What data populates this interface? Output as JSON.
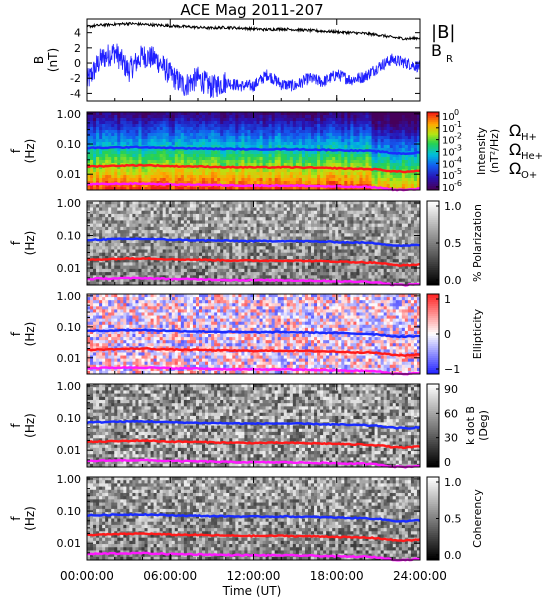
{
  "title": "ACE Mag 2011-207",
  "xaxis": {
    "ticks": [
      "00:00:00",
      "06:00:00",
      "12:00:00",
      "18:00:00",
      "24:00:00"
    ],
    "tick_hours": [
      0,
      6,
      12,
      18,
      24
    ],
    "label": "Time (UT)"
  },
  "colors": {
    "B": "#000000",
    "BR": "#1f1fff",
    "H": "#1a2cff",
    "He": "#ff1a1a",
    "O": "#ff19ff"
  },
  "chart_data": [
    {
      "type": "line",
      "panel": "field",
      "ylabel": "B",
      "yunit": "(nT)",
      "ylim": [
        -5,
        5.8
      ],
      "yticks": [
        "4",
        "2",
        "0",
        "-2",
        "-4"
      ],
      "ytick_values": [
        4,
        2,
        0,
        -2,
        -4
      ],
      "legend": [
        "|B|",
        "B"
      ],
      "legend_sub": [
        "",
        "R"
      ],
      "series": [
        {
          "name": "|B|",
          "x": [
            0,
            1,
            2,
            3,
            4,
            5,
            6,
            7,
            8,
            9,
            10,
            11,
            12,
            13,
            14,
            15,
            16,
            17,
            18,
            19,
            20,
            21,
            22,
            23,
            24
          ],
          "values": [
            4.8,
            5.0,
            5.1,
            5.2,
            5.1,
            5.0,
            4.9,
            4.8,
            4.7,
            4.6,
            4.7,
            4.6,
            4.5,
            4.4,
            4.5,
            4.4,
            4.3,
            4.2,
            4.1,
            4.0,
            3.9,
            3.7,
            3.4,
            3.2,
            3.3
          ]
        },
        {
          "name": "B_R",
          "x": [
            0,
            1,
            2,
            3,
            4,
            5,
            6,
            7,
            8,
            9,
            10,
            11,
            12,
            13,
            14,
            15,
            16,
            17,
            18,
            19,
            20,
            21,
            22,
            23,
            24
          ],
          "values": [
            -2.5,
            0.5,
            1.5,
            -1.0,
            1.0,
            0.5,
            -1.5,
            -3.0,
            -2.0,
            -3.2,
            -2.5,
            -3.0,
            -3.0,
            -1.5,
            -2.8,
            -3.0,
            -2.0,
            -2.5,
            -1.5,
            -2.2,
            -1.8,
            -0.5,
            0.5,
            0.0,
            -0.5
          ]
        }
      ]
    },
    {
      "type": "heatmap",
      "panel": "intensity",
      "ylabel": "f",
      "yunit": "(Hz)",
      "scale": "log",
      "ylim": [
        0.003,
        1.0
      ],
      "yticks": [
        "1.00",
        "0.10",
        "0.01"
      ],
      "ytick_values": [
        1.0,
        0.1,
        0.01
      ],
      "colorbar": {
        "label": "Intensity (nT²/Hz)",
        "ticks": [
          "10^0",
          "10^-1",
          "10^-2",
          "10^-3",
          "10^-4",
          "10^-5",
          "10^-6"
        ],
        "range": [
          -6.5,
          0
        ]
      },
      "legend": [
        "Ω",
        "Ω",
        "Ω"
      ],
      "legend_sub": [
        "H+",
        "He+",
        "O+"
      ]
    },
    {
      "type": "heatmap",
      "panel": "polarization",
      "ylabel": "f",
      "yunit": "(Hz)",
      "yticks": [
        "1.00",
        "0.10",
        "0.01"
      ],
      "ytick_values": [
        1.0,
        0.1,
        0.01
      ],
      "colorbar": {
        "label": "% Polarization",
        "ticks": [
          "1.0",
          "0.5",
          "0.0"
        ],
        "range": [
          0,
          1
        ]
      }
    },
    {
      "type": "heatmap",
      "panel": "ellipticity",
      "ylabel": "f",
      "yunit": "(Hz)",
      "yticks": [
        "1.00",
        "0.10",
        "0.01"
      ],
      "ytick_values": [
        1.0,
        0.1,
        0.01
      ],
      "colorbar": {
        "label": "Ellipticity",
        "ticks": [
          "1",
          "0",
          "−1"
        ],
        "range": [
          -1,
          1
        ]
      }
    },
    {
      "type": "heatmap",
      "panel": "kdotb",
      "ylabel": "f",
      "yunit": "(Hz)",
      "yticks": [
        "1.00",
        "0.10",
        "0.01"
      ],
      "ytick_values": [
        1.0,
        0.1,
        0.01
      ],
      "colorbar": {
        "label": "k dot B",
        "label2": "(Deg)",
        "ticks": [
          "90",
          "60",
          "30",
          "0"
        ],
        "range": [
          0,
          90
        ]
      }
    },
    {
      "type": "heatmap",
      "panel": "coherency",
      "ylabel": "f",
      "yunit": "(Hz)",
      "yticks": [
        "1.00",
        "0.10",
        "0.01"
      ],
      "ytick_values": [
        1.0,
        0.1,
        0.01
      ],
      "colorbar": {
        "label": "Coherency",
        "ticks": [
          "1.0",
          "0.5",
          "0.0"
        ],
        "range": [
          0,
          1
        ]
      }
    },
    {
      "type": "line",
      "panel": "gyrofrequencies",
      "series": [
        {
          "name": "H+",
          "x": [
            0,
            2,
            4,
            6,
            8,
            10,
            12,
            14,
            16,
            18,
            19,
            20,
            21,
            22,
            23,
            24
          ],
          "values": [
            0.073,
            0.077,
            0.079,
            0.074,
            0.071,
            0.069,
            0.067,
            0.068,
            0.066,
            0.063,
            0.061,
            0.06,
            0.057,
            0.05,
            0.048,
            0.052
          ]
        },
        {
          "name": "He+",
          "x": [
            0,
            2,
            4,
            6,
            8,
            10,
            12,
            14,
            16,
            18,
            19,
            20,
            21,
            22,
            23,
            24
          ],
          "values": [
            0.018,
            0.019,
            0.02,
            0.0185,
            0.018,
            0.0172,
            0.0168,
            0.017,
            0.0165,
            0.0158,
            0.0152,
            0.015,
            0.0143,
            0.0125,
            0.012,
            0.013
          ]
        },
        {
          "name": "O+",
          "x": [
            0,
            2,
            4,
            6,
            8,
            10,
            12,
            14,
            16,
            18,
            19,
            20,
            21,
            22,
            23,
            24
          ],
          "values": [
            0.0046,
            0.0048,
            0.0049,
            0.0046,
            0.0045,
            0.0043,
            0.0042,
            0.0042,
            0.0041,
            0.0039,
            0.0038,
            0.0038,
            0.0036,
            0.0031,
            0.003,
            0.0033
          ]
        }
      ]
    }
  ]
}
